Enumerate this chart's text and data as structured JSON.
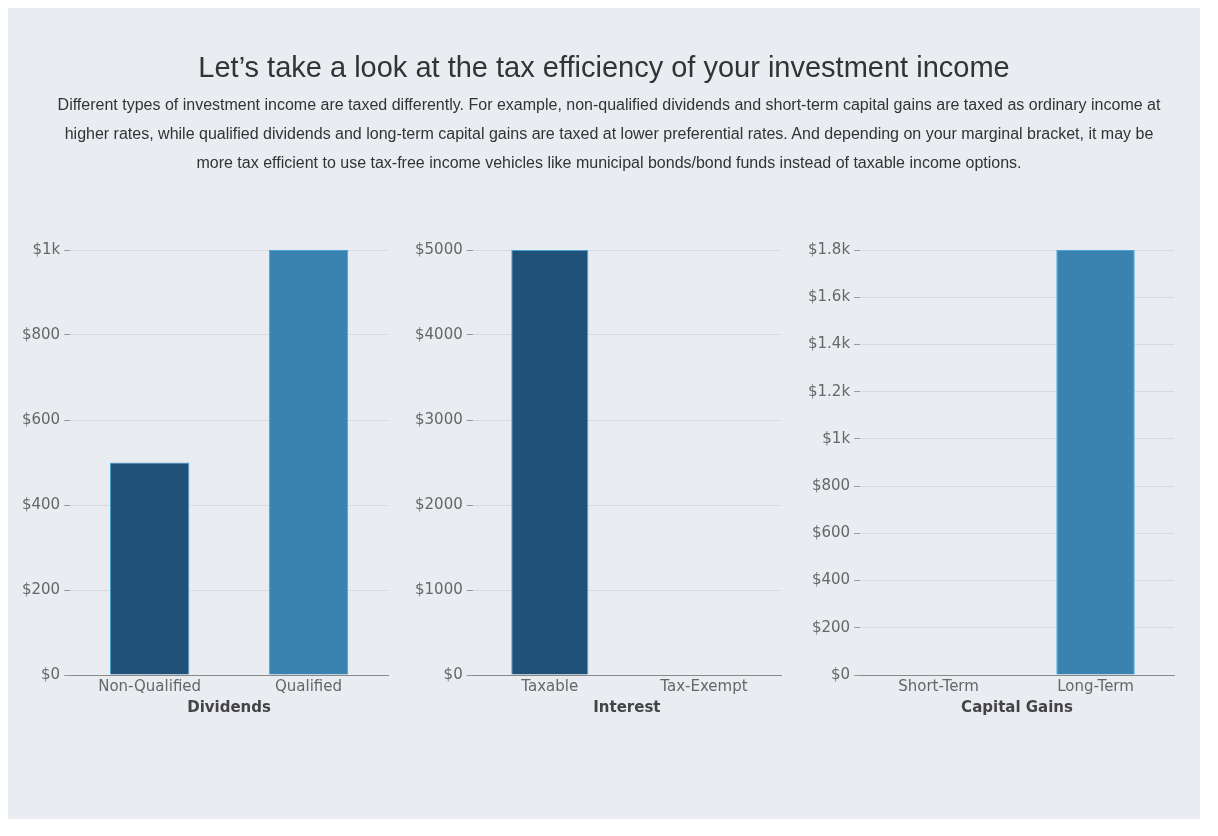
{
  "chart_data": [
    {
      "type": "bar",
      "title": "Let’s take a look at the tax efficiency of your investment income",
      "subtitle": "Different types of investment income are taxed differently. For example, non-qualified dividends and short-term capital gains are taxed as ordinary income at higher rates, while qualified dividends and long-term capital gains are taxed at lower preferential rates. And depending on your marginal bracket, it may be more tax efficient to use tax-free income vehicles like municipal bonds/bond funds instead of taxable income options.",
      "xlabel": "Dividends",
      "categories": [
        "Non-Qualified",
        "Qualified"
      ],
      "values": [
        500,
        1000
      ],
      "colors": [
        "#1f5179",
        "#3a82b0"
      ],
      "ylim": [
        0,
        1000
      ],
      "yticks": [
        {
          "value": 0,
          "label": "$0"
        },
        {
          "value": 200,
          "label": "$200"
        },
        {
          "value": 400,
          "label": "$400"
        },
        {
          "value": 600,
          "label": "$600"
        },
        {
          "value": 800,
          "label": "$800"
        },
        {
          "value": 1000,
          "label": "$1k"
        }
      ],
      "grid": "y"
    },
    {
      "type": "bar",
      "xlabel": "Interest",
      "categories": [
        "Taxable",
        "Tax-Exempt"
      ],
      "values": [
        5000,
        0
      ],
      "colors": [
        "#1f5179",
        "#3a82b0"
      ],
      "ylim": [
        0,
        5000
      ],
      "yticks": [
        {
          "value": 0,
          "label": "$0"
        },
        {
          "value": 1000,
          "label": "$1000"
        },
        {
          "value": 2000,
          "label": "$2000"
        },
        {
          "value": 3000,
          "label": "$3000"
        },
        {
          "value": 4000,
          "label": "$4000"
        },
        {
          "value": 5000,
          "label": "$5000"
        }
      ],
      "grid": "y"
    },
    {
      "type": "bar",
      "xlabel": "Capital Gains",
      "categories": [
        "Short-Term",
        "Long-Term"
      ],
      "values": [
        0,
        1800
      ],
      "colors": [
        "#1f5179",
        "#3a82b0"
      ],
      "ylim": [
        0,
        1800
      ],
      "yticks": [
        {
          "value": 0,
          "label": "$0"
        },
        {
          "value": 200,
          "label": "$200"
        },
        {
          "value": 400,
          "label": "$400"
        },
        {
          "value": 600,
          "label": "$600"
        },
        {
          "value": 800,
          "label": "$800"
        },
        {
          "value": 1000,
          "label": "$1k"
        },
        {
          "value": 1200,
          "label": "$1.2k"
        },
        {
          "value": 1400,
          "label": "$1.4k"
        },
        {
          "value": 1600,
          "label": "$1.6k"
        },
        {
          "value": 1800,
          "label": "$1.8k"
        }
      ],
      "grid": "y"
    }
  ]
}
